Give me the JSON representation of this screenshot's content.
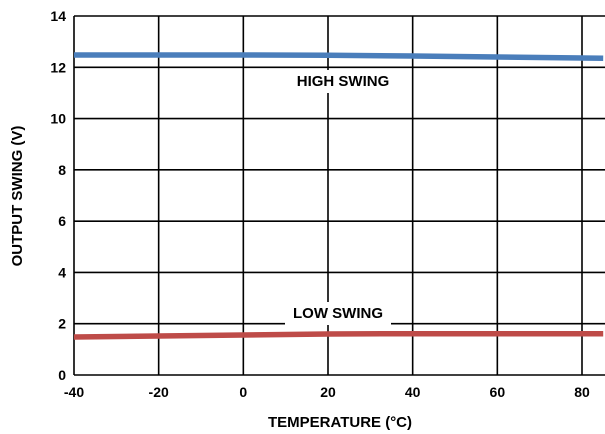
{
  "chart_data": {
    "type": "line",
    "xlabel": "TEMPERATURE (°C)",
    "ylabel": "OUTPUT SWING (V)",
    "xlim": [
      -40,
      85
    ],
    "ylim": [
      0,
      14
    ],
    "xticks": [
      -40,
      -20,
      0,
      20,
      40,
      60,
      80
    ],
    "yticks": [
      0,
      2,
      4,
      6,
      8,
      10,
      12,
      14
    ],
    "grid": true,
    "series": [
      {
        "name": "HIGH SWING",
        "color": "#4a7ebb",
        "x": [
          -40,
          -20,
          0,
          20,
          40,
          60,
          85
        ],
        "y": [
          12.48,
          12.48,
          12.48,
          12.47,
          12.44,
          12.4,
          12.35
        ]
      },
      {
        "name": "LOW SWING",
        "color": "#be4b48",
        "x": [
          -40,
          -20,
          0,
          20,
          40,
          60,
          85
        ],
        "y": [
          1.48,
          1.52,
          1.56,
          1.6,
          1.61,
          1.61,
          1.61
        ]
      }
    ]
  }
}
